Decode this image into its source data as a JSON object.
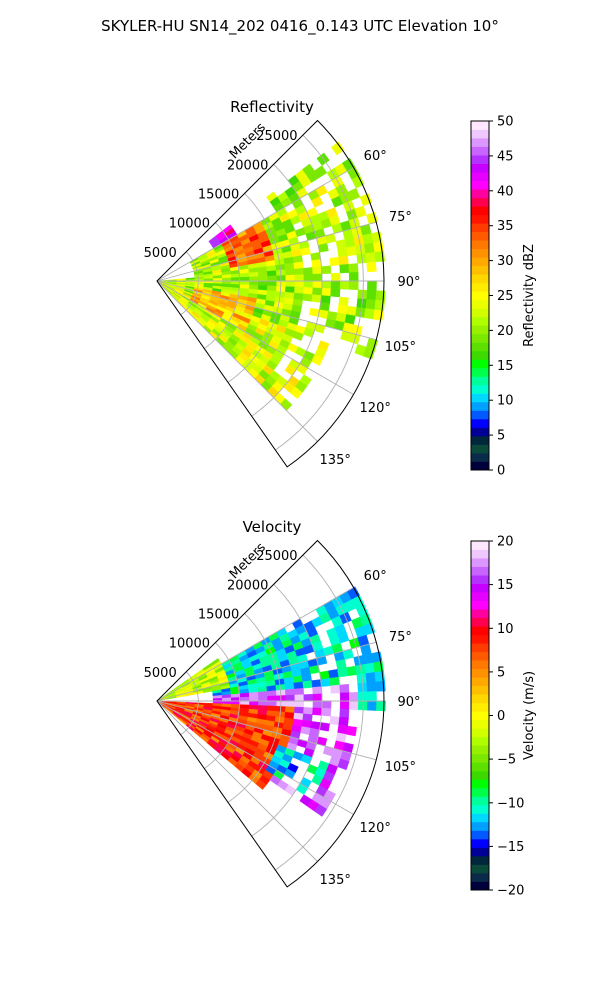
{
  "figure": {
    "suptitle": "SKYLER-HU  SN14_202  0416_0.143 UTC Elevation 10°"
  },
  "chart_data": [
    {
      "type": "heatmap",
      "projection": "polar",
      "title": "Reflectivity",
      "radial_axis_label": "Meters",
      "radial_ticks": [
        5000,
        10000,
        15000,
        20000,
        25000
      ],
      "radial_tick_labels": [
        "5000",
        "10000",
        "15000",
        "20000",
        "25000"
      ],
      "rmax": 27500,
      "theta_range_deg": [
        45,
        145
      ],
      "theta_ticks_deg": [
        60,
        75,
        90,
        105,
        120,
        135
      ],
      "theta_tick_labels": [
        "60°",
        "75°",
        "90°",
        "105°",
        "120°",
        "135°"
      ],
      "grid": true,
      "colorbar": {
        "label": "Reflectivity dBZ",
        "vmin": 0,
        "vmax": 50,
        "ticks": [
          0,
          5,
          10,
          15,
          20,
          25,
          30,
          35,
          40,
          45,
          50
        ],
        "tick_labels": [
          "0",
          "5",
          "10",
          "15",
          "20",
          "25",
          "30",
          "35",
          "40",
          "45",
          "50"
        ],
        "colors": [
          "#00003c",
          "#0a2a4a",
          "#0b4a3a",
          "#00283c",
          "#000096",
          "#0000ff",
          "#005aff",
          "#00a0ff",
          "#00d8ff",
          "#00ffd0",
          "#00ff9a",
          "#00ff4a",
          "#00ff00",
          "#3cd800",
          "#5ce000",
          "#7ae800",
          "#96f000",
          "#b0ff00",
          "#d2ff00",
          "#ecff00",
          "#ffff00",
          "#ffec00",
          "#ffd800",
          "#ffc000",
          "#ffa800",
          "#ff9000",
          "#ff7800",
          "#ff5a00",
          "#ff3c00",
          "#ff1400",
          "#ff0000",
          "#ff0050",
          "#ff00a0",
          "#ff00ff",
          "#e600ff",
          "#c800ff",
          "#b432ff",
          "#c864ff",
          "#dc96ff",
          "#eec8ff",
          "#ffe8ff"
        ]
      },
      "field_summary": {
        "sectors": [
          {
            "theta_range_deg": [
              52,
              60
            ],
            "r_range": [
              16000,
              27500
            ],
            "value": 20
          },
          {
            "theta_range_deg": [
              60,
              85
            ],
            "r_range": [
              4000,
              27500
            ],
            "value": 22
          },
          {
            "theta_range_deg": [
              85,
              110
            ],
            "r_range": [
              0,
              27000
            ],
            "value": 21
          },
          {
            "theta_range_deg": [
              110,
              135
            ],
            "r_range": [
              0,
              22000
            ],
            "value": 23
          },
          {
            "theta_range_deg": [
              60,
              80
            ],
            "r_range": [
              8000,
              14000
            ],
            "value": 33
          },
          {
            "theta_range_deg": [
              52,
              58
            ],
            "r_range": [
              7000,
              11000
            ],
            "value": 42
          },
          {
            "theta_range_deg": [
              100,
              118
            ],
            "r_range": [
              4000,
              12000
            ],
            "value": 28
          }
        ]
      }
    },
    {
      "type": "heatmap",
      "projection": "polar",
      "title": "Velocity",
      "radial_axis_label": "Meters",
      "radial_ticks": [
        5000,
        10000,
        15000,
        20000,
        25000
      ],
      "radial_tick_labels": [
        "5000",
        "10000",
        "15000",
        "20000",
        "25000"
      ],
      "rmax": 27500,
      "theta_range_deg": [
        45,
        145
      ],
      "theta_ticks_deg": [
        60,
        75,
        90,
        105,
        120,
        135
      ],
      "theta_tick_labels": [
        "60°",
        "75°",
        "90°",
        "105°",
        "120°",
        "135°"
      ],
      "grid": true,
      "colorbar": {
        "label": "Velocity (m/s)",
        "vmin": -20,
        "vmax": 20,
        "ticks": [
          -20,
          -15,
          -10,
          -5,
          0,
          5,
          10,
          15,
          20
        ],
        "tick_labels": [
          "−20",
          "−15",
          "−10",
          "−5",
          "0",
          "5",
          "10",
          "15",
          "20"
        ],
        "colors": [
          "#00003c",
          "#0a2a4a",
          "#0b4a3a",
          "#00283c",
          "#000096",
          "#0000ff",
          "#005aff",
          "#00a0ff",
          "#00d8ff",
          "#00ffd0",
          "#00ff9a",
          "#00ff4a",
          "#00ff00",
          "#3cd800",
          "#5ce000",
          "#7ae800",
          "#96f000",
          "#b0ff00",
          "#d2ff00",
          "#ecff00",
          "#ffff00",
          "#ffec00",
          "#ffd800",
          "#ffc000",
          "#ffa800",
          "#ff9000",
          "#ff7800",
          "#ff5a00",
          "#ff3c00",
          "#ff1400",
          "#ff0000",
          "#ff0050",
          "#ff00a0",
          "#ff00ff",
          "#e600ff",
          "#c800ff",
          "#b432ff",
          "#c864ff",
          "#dc96ff",
          "#eec8ff",
          "#ffe8ff"
        ]
      },
      "field_summary": {
        "sectors": [
          {
            "theta_range_deg": [
              60,
              92
            ],
            "r_range": [
              6000,
              27500
            ],
            "value": -11
          },
          {
            "theta_range_deg": [
              85,
              125
            ],
            "r_range": [
              6000,
              24000
            ],
            "value": 16
          },
          {
            "theta_range_deg": [
              92,
              130
            ],
            "r_range": [
              0,
              16000
            ],
            "value": 8
          },
          {
            "theta_range_deg": [
              55,
              80
            ],
            "r_range": [
              0,
              8000
            ],
            "value": -2
          },
          {
            "theta_range_deg": [
              110,
              122
            ],
            "r_range": [
              15000,
              22000
            ],
            "value": -12
          }
        ]
      }
    }
  ]
}
